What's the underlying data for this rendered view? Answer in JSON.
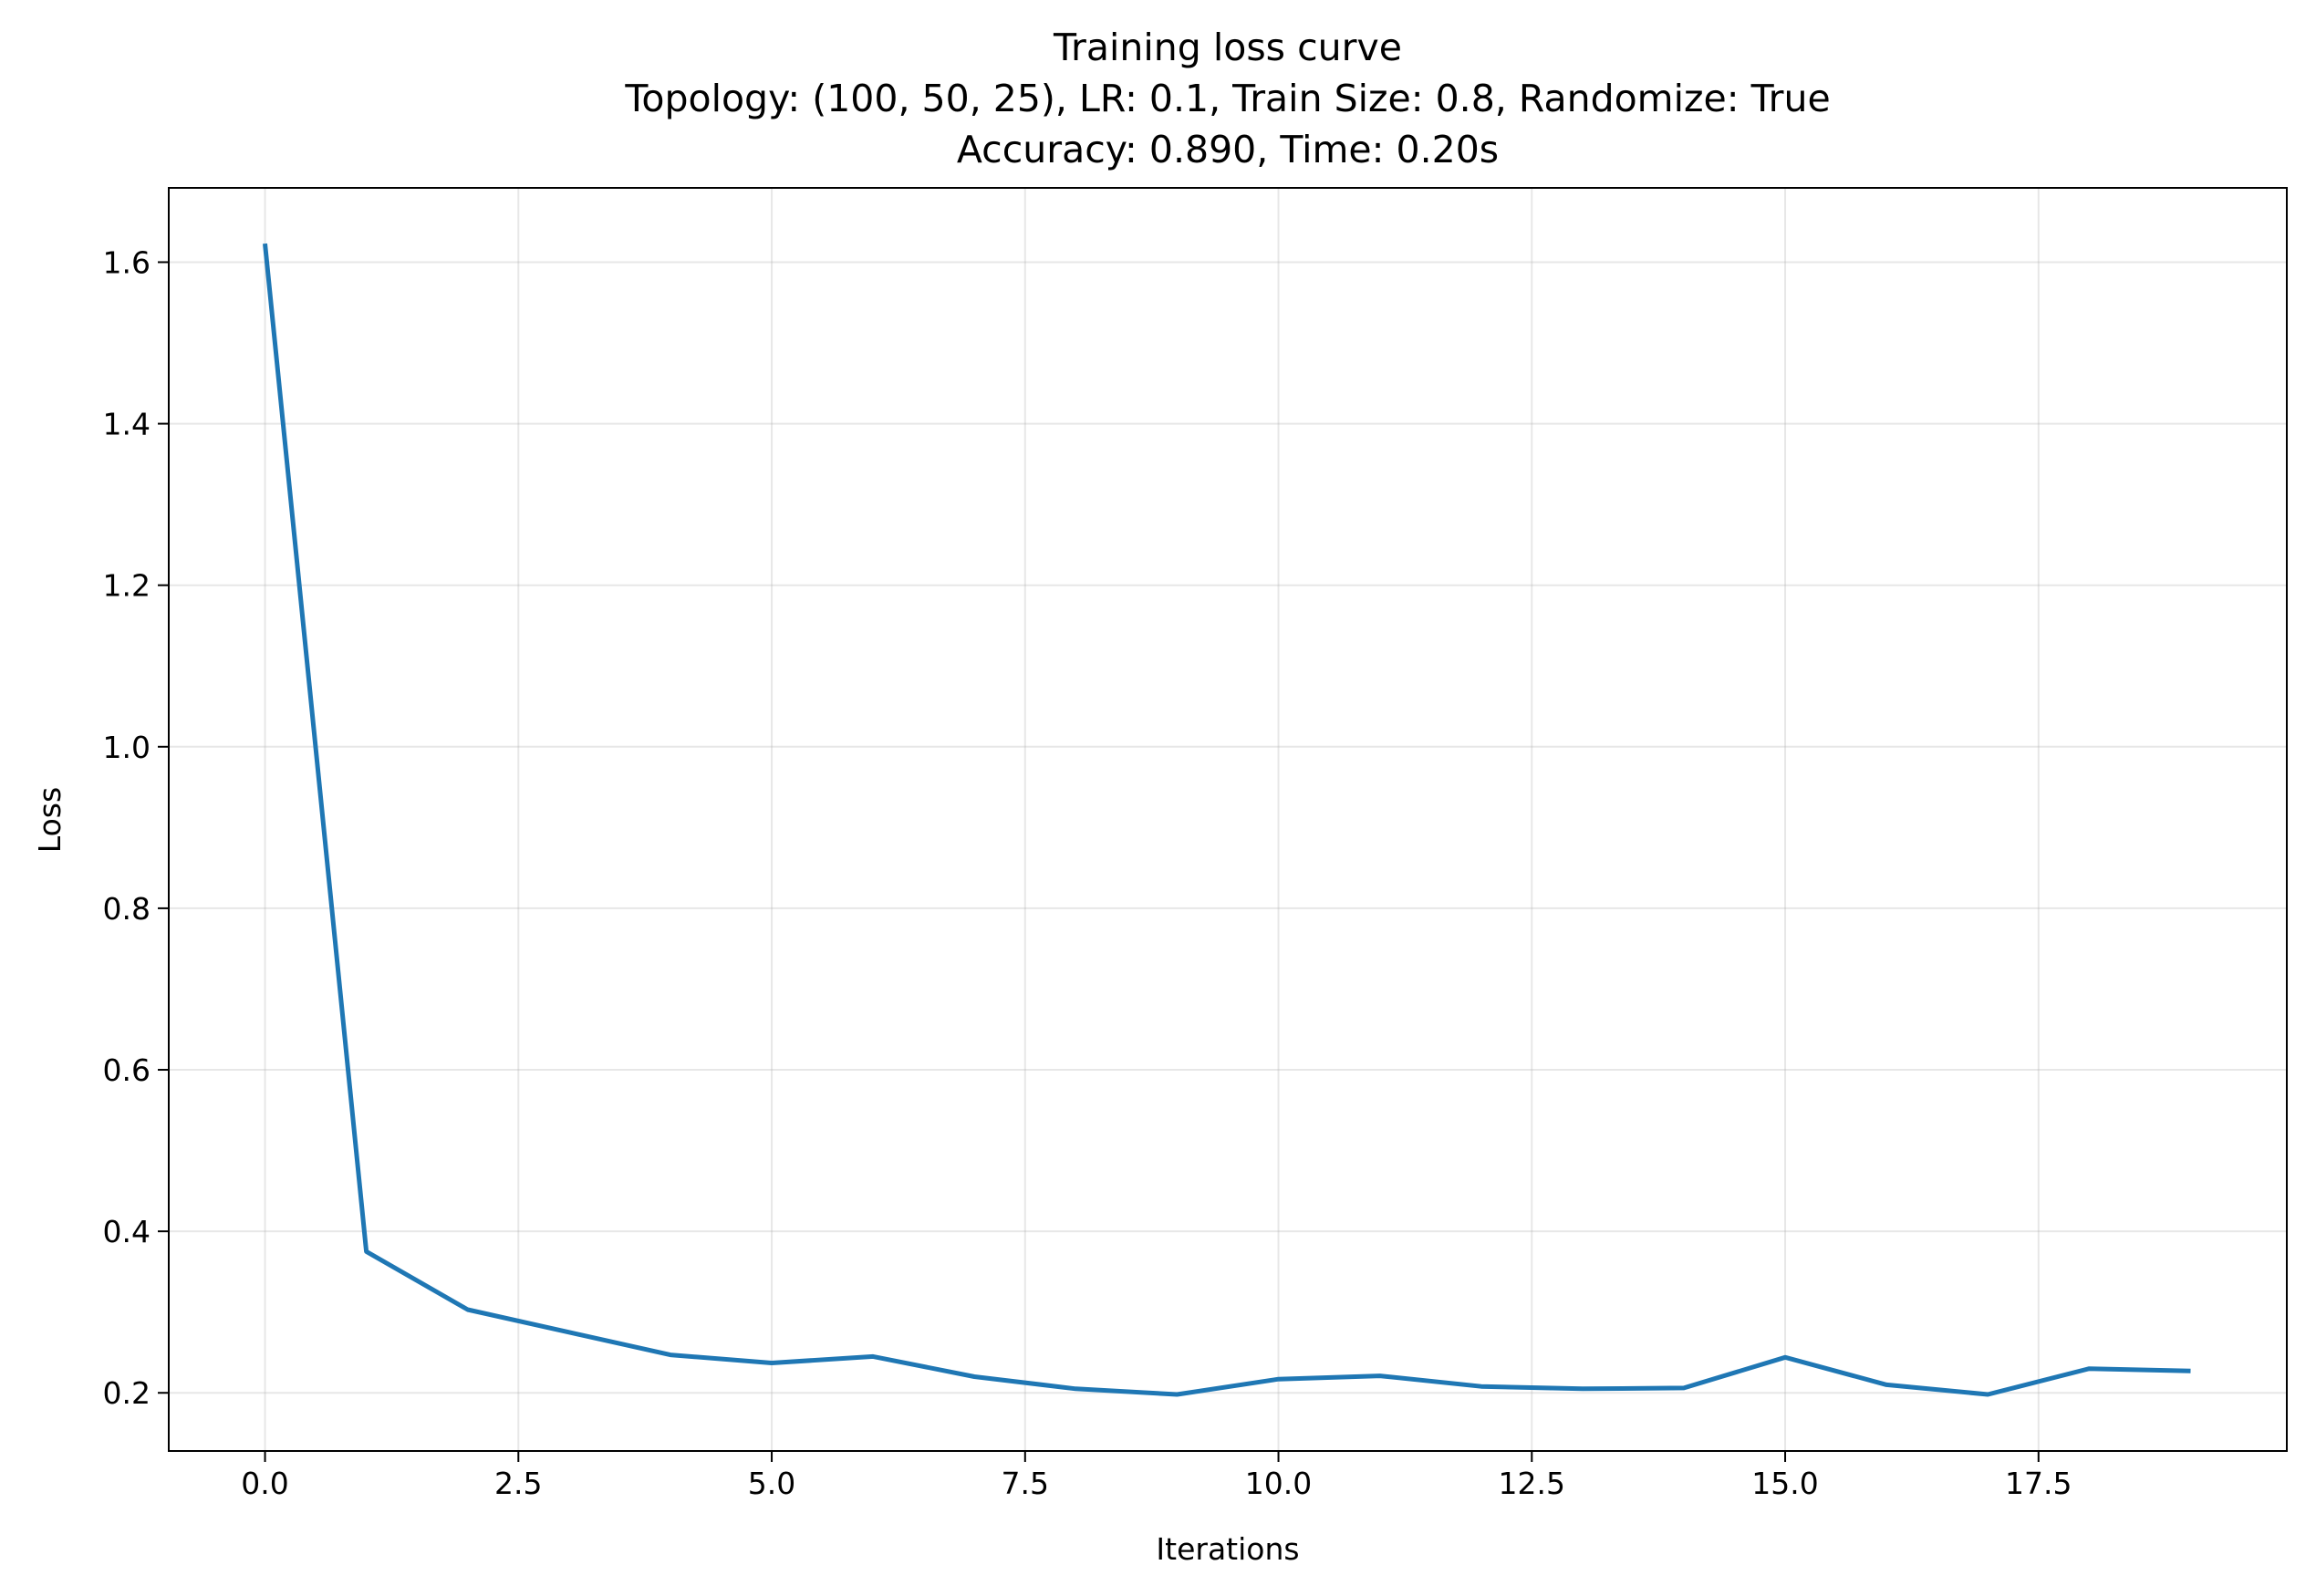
{
  "chart_data": {
    "type": "line",
    "title_lines": [
      "Training loss curve",
      "Topology: (100, 50, 25), LR: 0.1, Train Size: 0.8, Randomize: True",
      "Accuracy: 0.890, Time: 0.20s"
    ],
    "xlabel": "Iterations",
    "ylabel": "Loss",
    "xlim": [
      -0.95,
      19.95
    ],
    "ylim": [
      0.128,
      1.692
    ],
    "xticks": [
      0.0,
      2.5,
      5.0,
      7.5,
      10.0,
      12.5,
      15.0,
      17.5
    ],
    "xtick_labels": [
      "0.0",
      "2.5",
      "5.0",
      "7.5",
      "10.0",
      "12.5",
      "15.0",
      "17.5"
    ],
    "yticks": [
      0.2,
      0.4,
      0.6,
      0.8,
      1.0,
      1.2,
      1.4,
      1.6
    ],
    "ytick_labels": [
      "0.2",
      "0.4",
      "0.6",
      "0.8",
      "1.0",
      "1.2",
      "1.4",
      "1.6"
    ],
    "grid": true,
    "series": [
      {
        "color": "#1f77b4",
        "x": [
          0,
          1,
          2,
          3,
          4,
          5,
          6,
          7,
          8,
          9,
          10,
          11,
          12,
          13,
          14,
          15,
          16,
          17,
          18,
          19
        ],
        "values": [
          1.623,
          0.375,
          0.303,
          0.275,
          0.247,
          0.237,
          0.245,
          0.22,
          0.205,
          0.198,
          0.217,
          0.221,
          0.208,
          0.205,
          0.206,
          0.244,
          0.21,
          0.198,
          0.23,
          0.227
        ]
      }
    ]
  }
}
